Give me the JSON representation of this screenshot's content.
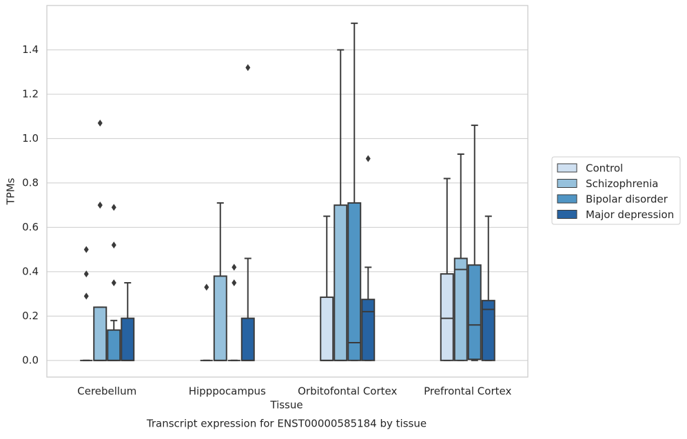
{
  "chart_data": {
    "type": "box",
    "title": "Transcript expression for ENST00000585184 by tissue",
    "x_label": "Tissue",
    "y_label": "TPMs",
    "categories": [
      "Cerebellum",
      "Hipppocampus",
      "Orbitofontal Cortex",
      "Prefrontal Cortex"
    ],
    "ylim": [
      -0.075,
      1.6
    ],
    "yticks": [
      {
        "value": 0,
        "label": "0.0"
      },
      0.2,
      0.4,
      0.6,
      0.8,
      {
        "value": 1,
        "label": "1.0"
      },
      1.2,
      1.4
    ],
    "grid": true,
    "legend": "right",
    "series": [
      {
        "name": "Control",
        "color": "#cfe0f1",
        "q1": [
          0,
          0,
          0,
          0
        ],
        "median": [
          0,
          0,
          0,
          0.19
        ],
        "q3": [
          0,
          0,
          0.285,
          0.39
        ],
        "whislo": [
          0,
          0,
          0,
          0
        ],
        "whishi": [
          0,
          0,
          0.65,
          0.82
        ],
        "outliers": [
          [
            0.5,
            0.39,
            0.29
          ],
          [
            0.33
          ],
          [],
          []
        ]
      },
      {
        "name": "Schizophrenia",
        "color": "#96c1dc",
        "q1": [
          0,
          0,
          0,
          0
        ],
        "median": [
          0,
          0,
          0,
          0.41
        ],
        "q3": [
          0.24,
          0.38,
          0.7,
          0.46
        ],
        "whislo": [
          0,
          0,
          0,
          0
        ],
        "whishi": [
          0.24,
          0.71,
          1.4,
          0.93
        ],
        "outliers": [
          [
            1.07,
            0.7,
            0.7
          ],
          [],
          [],
          []
        ]
      },
      {
        "name": "Bipolar disorder",
        "color": "#5095c4",
        "q1": [
          0,
          0,
          0,
          0.005
        ],
        "median": [
          0,
          0,
          0.08,
          0.16
        ],
        "q3": [
          0.137,
          0,
          0.71,
          0.43
        ],
        "whislo": [
          0,
          0,
          0,
          0
        ],
        "whishi": [
          0.18,
          0,
          1.52,
          1.06
        ],
        "outliers": [
          [
            0.69,
            0.52,
            0.35
          ],
          [
            0.42,
            0.35
          ],
          [],
          []
        ]
      },
      {
        "name": "Major depression",
        "color": "#2763a2",
        "q1": [
          0,
          0,
          0,
          0
        ],
        "median": [
          0,
          0,
          0.22,
          0.23
        ],
        "q3": [
          0.19,
          0.19,
          0.275,
          0.27
        ],
        "whislo": [
          0,
          0,
          0,
          0
        ],
        "whishi": [
          0.35,
          0.46,
          0.42,
          0.65
        ],
        "outliers": [
          [],
          [
            1.32
          ],
          [
            0.91
          ],
          []
        ]
      }
    ]
  }
}
